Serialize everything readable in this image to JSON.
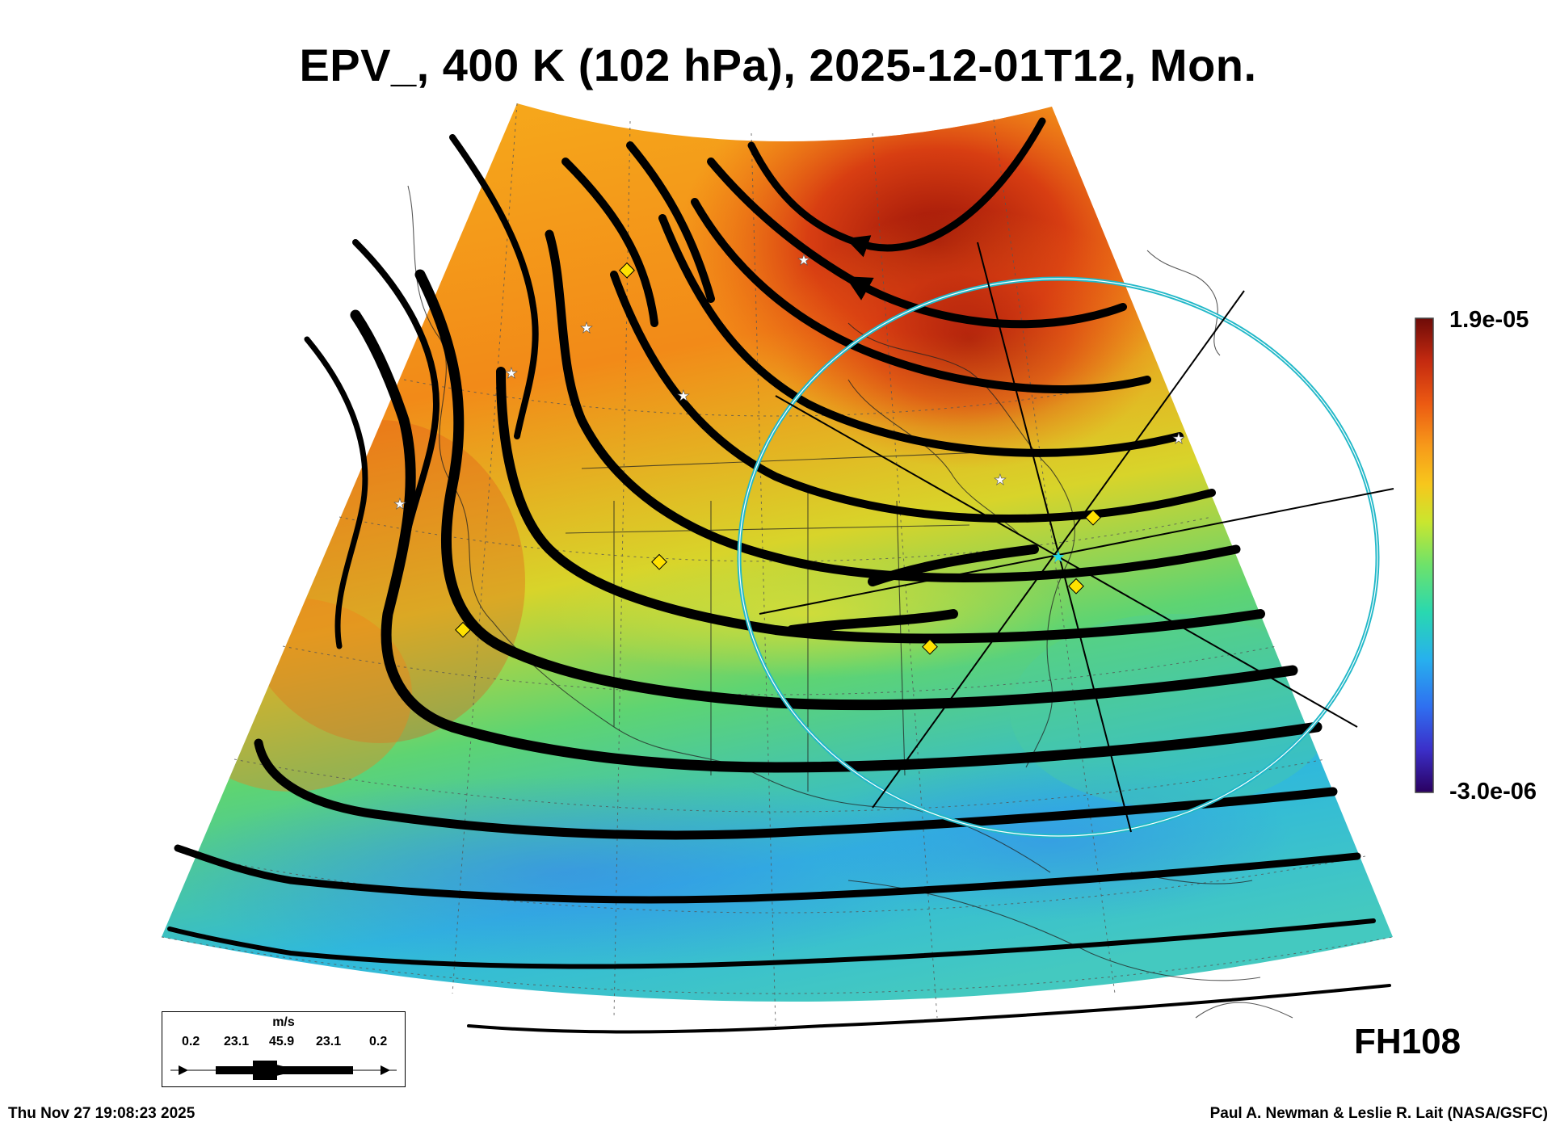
{
  "title": "EPV_, 400 K (102 hPa), 2025-12-01T12, Mon.",
  "colorbar": {
    "max_label": "1.9e-05",
    "min_label": "-3.0e-06",
    "colors": [
      "#2a0060",
      "#3b2fc9",
      "#2f6ff0",
      "#27b0ee",
      "#29d8b0",
      "#6ee26a",
      "#c9e62f",
      "#f7c71c",
      "#f79a1a",
      "#ec5a12",
      "#c42a10",
      "#6e0b08"
    ]
  },
  "forecast_hour": "FH108",
  "wind_legend": {
    "unit": "m/s",
    "values": [
      "0.2",
      "23.1",
      "45.9",
      "23.1",
      "0.2"
    ]
  },
  "footer": {
    "timestamp": "Thu Nov 27 19:08:23 2025",
    "credit": "Paul A. Newman & Leslie R. Lait (NASA/GSFC)"
  },
  "colors": {
    "ring": "#22b8c8",
    "markers_diamond": "#ffe100",
    "markers_star": "#ffffff"
  }
}
